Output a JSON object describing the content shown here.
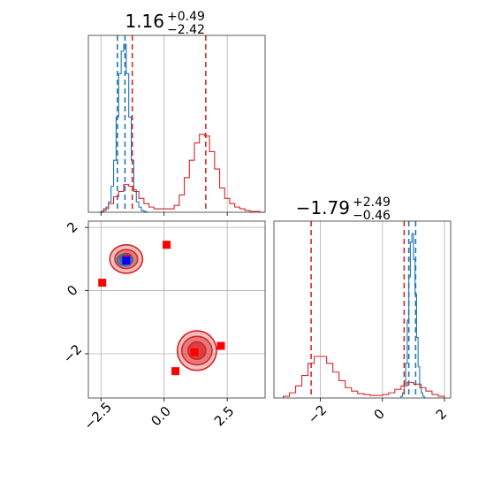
{
  "colors": {
    "blue": "#1f77b4",
    "red": "#d62728",
    "marker_red": "#ff0000",
    "marker_blue": "#0000ff",
    "grid": "#b0b0b0"
  },
  "chart_data": [
    {
      "type": "histogram",
      "panel": "top-left",
      "title": {
        "value": "1.16",
        "plus": "+0.49",
        "minus": "−2.42"
      },
      "xlim": [
        -3.0,
        4.0
      ],
      "xticks": [
        -2.5,
        0.0,
        2.5
      ],
      "grid": true,
      "series": [
        {
          "color": "#1f77b4",
          "bin_edges": [
            -2.6,
            -2.5,
            -2.4,
            -2.3,
            -2.2,
            -2.1,
            -2.0,
            -1.9,
            -1.8,
            -1.7,
            -1.6,
            -1.5,
            -1.4,
            -1.3,
            -1.2,
            -1.1,
            -1.0,
            -0.9,
            -0.8,
            -0.7,
            -0.6
          ],
          "counts": [
            0.0,
            0.005,
            0.01,
            0.03,
            0.06,
            0.15,
            0.3,
            0.55,
            0.8,
            0.93,
            0.97,
            0.8,
            0.55,
            0.3,
            0.13,
            0.06,
            0.03,
            0.01,
            0.005,
            0.0
          ],
          "quantiles": [
            -1.85,
            -1.55
          ]
        },
        {
          "color": "#d62728",
          "bin_edges": [
            -2.6,
            -2.4,
            -2.2,
            -2.0,
            -1.8,
            -1.6,
            -1.4,
            -1.2,
            -1.0,
            -0.8,
            -0.6,
            -0.4,
            -0.2,
            0.0,
            0.2,
            0.4,
            0.6,
            0.8,
            1.0,
            1.2,
            1.4,
            1.6,
            1.8,
            2.0,
            2.2,
            2.4,
            2.6,
            2.8,
            3.0,
            3.2,
            3.4,
            3.6,
            3.8,
            4.0
          ],
          "counts": [
            0.0,
            0.02,
            0.05,
            0.09,
            0.12,
            0.16,
            0.15,
            0.12,
            0.08,
            0.05,
            0.03,
            0.02,
            0.02,
            0.02,
            0.02,
            0.04,
            0.1,
            0.2,
            0.3,
            0.4,
            0.45,
            0.44,
            0.35,
            0.25,
            0.14,
            0.08,
            0.05,
            0.03,
            0.02,
            0.01,
            0.005,
            0.005,
            0.0
          ],
          "quantiles": [
            -1.26,
            1.65
          ]
        }
      ]
    },
    {
      "type": "contour",
      "panel": "bottom-left",
      "xlim": [
        -3.0,
        4.0
      ],
      "ylim": [
        -3.4,
        2.2
      ],
      "xticks": [
        -2.5,
        0.0,
        2.5
      ],
      "xticklabels": [
        "−2.5",
        "0.0",
        "2.5"
      ],
      "yticks": [
        2,
        0,
        -2
      ],
      "yticklabels": [
        "2",
        "0",
        "−2"
      ],
      "grid": true,
      "series": [
        {
          "color": "#d62728",
          "modes": [
            {
              "center": [
                -1.5,
                1.0
              ],
              "levels": [
                [
                  1.3,
                  0.9
                ],
                [
                  0.9,
                  0.6
                ],
                [
                  0.5,
                  0.35
                ]
              ]
            },
            {
              "center": [
                1.3,
                -1.9
              ],
              "levels": [
                [
                  1.55,
                  1.25
                ],
                [
                  1.2,
                  0.9
                ],
                [
                  0.7,
                  0.55
                ]
              ]
            }
          ]
        },
        {
          "color": "#1f77b4",
          "modes": [
            {
              "center": [
                -1.55,
                0.97
              ],
              "levels": [
                [
                  0.6,
                  0.35
                ],
                [
                  0.35,
                  0.2
                ]
              ]
            }
          ]
        }
      ],
      "markers": [
        {
          "color": "#ff0000",
          "points": [
            [
              -2.45,
              0.25
            ],
            [
              0.1,
              1.45
            ],
            [
              -1.5,
              1.0
            ],
            [
              1.2,
              -1.95
            ],
            [
              2.25,
              -1.75
            ],
            [
              0.45,
              -2.55
            ]
          ]
        },
        {
          "color": "#0000ff",
          "points": [
            [
              -1.5,
              0.95
            ]
          ]
        }
      ]
    },
    {
      "type": "histogram",
      "panel": "bottom-right",
      "title": {
        "value": "−1.79",
        "plus": "+2.49",
        "minus": "−0.46"
      },
      "xlim": [
        -3.5,
        2.2
      ],
      "xticks": [
        -2,
        0,
        2
      ],
      "xticklabels": [
        "−2",
        "0",
        "2"
      ],
      "grid": true,
      "series": [
        {
          "color": "#1f77b4",
          "bin_edges": [
            0.6,
            0.65,
            0.7,
            0.75,
            0.8,
            0.85,
            0.9,
            0.95,
            1.0,
            1.05,
            1.1,
            1.15,
            1.2,
            1.25,
            1.3,
            1.35,
            1.4
          ],
          "counts": [
            0.01,
            0.03,
            0.08,
            0.2,
            0.45,
            0.7,
            0.9,
            0.95,
            0.8,
            0.6,
            0.35,
            0.18,
            0.08,
            0.03,
            0.01,
            0.0
          ],
          "quantiles": [
            0.85,
            1.07
          ]
        },
        {
          "color": "#d62728",
          "bin_edges": [
            -3.2,
            -3.0,
            -2.8,
            -2.6,
            -2.4,
            -2.2,
            -2.0,
            -1.8,
            -1.6,
            -1.4,
            -1.2,
            -1.0,
            -0.8,
            -0.6,
            -0.4,
            -0.2,
            0.0,
            0.2,
            0.4,
            0.6,
            0.8,
            1.0,
            1.2,
            1.4,
            1.6,
            1.8,
            2.0
          ],
          "counts": [
            0.01,
            0.03,
            0.07,
            0.13,
            0.2,
            0.24,
            0.24,
            0.2,
            0.15,
            0.1,
            0.06,
            0.04,
            0.025,
            0.02,
            0.015,
            0.015,
            0.02,
            0.03,
            0.05,
            0.07,
            0.09,
            0.08,
            0.06,
            0.04,
            0.02,
            0.01
          ],
          "quantiles": [
            -2.3,
            0.7
          ]
        }
      ]
    }
  ]
}
